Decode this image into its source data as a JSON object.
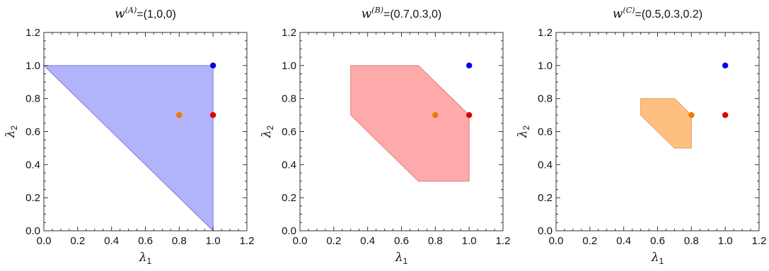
{
  "chart_data": [
    {
      "type": "area",
      "title": {
        "var": "w",
        "superscript": "(A)",
        "value": "=(1,0,0)"
      },
      "xlabel": {
        "symbol": "λ",
        "subscript": "1"
      },
      "ylabel": {
        "symbol": "λ",
        "subscript": "2"
      },
      "xlim": [
        0,
        1.2
      ],
      "ylim": [
        0,
        1.2
      ],
      "xticks": [
        "0.0",
        "0.2",
        "0.4",
        "0.6",
        "0.8",
        "1.0",
        "1.2"
      ],
      "yticks": [
        "0.0",
        "0.2",
        "0.4",
        "0.6",
        "0.8",
        "1.0",
        "1.2"
      ],
      "region": {
        "fill": "#b3b3fa",
        "stroke": "#7b7bdc",
        "points": [
          [
            0,
            1.0
          ],
          [
            1.0,
            1.0
          ],
          [
            1.0,
            0
          ]
        ]
      },
      "points": [
        {
          "x": 1.0,
          "y": 1.0,
          "color": "#0000ee"
        },
        {
          "x": 0.8,
          "y": 0.7,
          "color": "#f07800"
        },
        {
          "x": 1.0,
          "y": 0.7,
          "color": "#e00000"
        }
      ]
    },
    {
      "type": "area",
      "title": {
        "var": "w",
        "superscript": "(B)",
        "value": "=(0.7,0.3,0)"
      },
      "xlabel": {
        "symbol": "λ",
        "subscript": "1"
      },
      "ylabel": {
        "symbol": "λ",
        "subscript": "2"
      },
      "xlim": [
        0,
        1.2
      ],
      "ylim": [
        0,
        1.2
      ],
      "xticks": [
        "0.0",
        "0.2",
        "0.4",
        "0.6",
        "0.8",
        "1.0",
        "1.2"
      ],
      "yticks": [
        "0.0",
        "0.2",
        "0.4",
        "0.6",
        "0.8",
        "1.0",
        "1.2"
      ],
      "region": {
        "fill": "#ffaaaa",
        "stroke": "#d98080",
        "points": [
          [
            0.3,
            1.0
          ],
          [
            0.7,
            1.0
          ],
          [
            1.0,
            0.7
          ],
          [
            1.0,
            0.3
          ],
          [
            0.7,
            0.3
          ],
          [
            0.3,
            0.7
          ]
        ]
      },
      "points": [
        {
          "x": 1.0,
          "y": 1.0,
          "color": "#0000ee"
        },
        {
          "x": 0.8,
          "y": 0.7,
          "color": "#f07800"
        },
        {
          "x": 1.0,
          "y": 0.7,
          "color": "#e00000"
        }
      ]
    },
    {
      "type": "area",
      "title": {
        "var": "w",
        "superscript": "(C)",
        "value": "=(0.5,0.3,0.2)"
      },
      "xlabel": {
        "symbol": "λ",
        "subscript": "1"
      },
      "ylabel": {
        "symbol": "λ",
        "subscript": "2"
      },
      "xlim": [
        0,
        1.2
      ],
      "ylim": [
        0,
        1.2
      ],
      "xticks": [
        "0.0",
        "0.2",
        "0.4",
        "0.6",
        "0.8",
        "1.0",
        "1.2"
      ],
      "yticks": [
        "0.0",
        "0.2",
        "0.4",
        "0.6",
        "0.8",
        "1.0",
        "1.2"
      ],
      "region": {
        "fill": "#ffbf80",
        "stroke": "#e0a060",
        "points": [
          [
            0.5,
            0.8
          ],
          [
            0.7,
            0.8
          ],
          [
            0.8,
            0.7
          ],
          [
            0.8,
            0.5
          ],
          [
            0.7,
            0.5
          ],
          [
            0.5,
            0.7
          ]
        ]
      },
      "points": [
        {
          "x": 1.0,
          "y": 1.0,
          "color": "#0000ee"
        },
        {
          "x": 0.8,
          "y": 0.7,
          "color": "#f07800"
        },
        {
          "x": 1.0,
          "y": 0.7,
          "color": "#e00000"
        }
      ]
    }
  ]
}
